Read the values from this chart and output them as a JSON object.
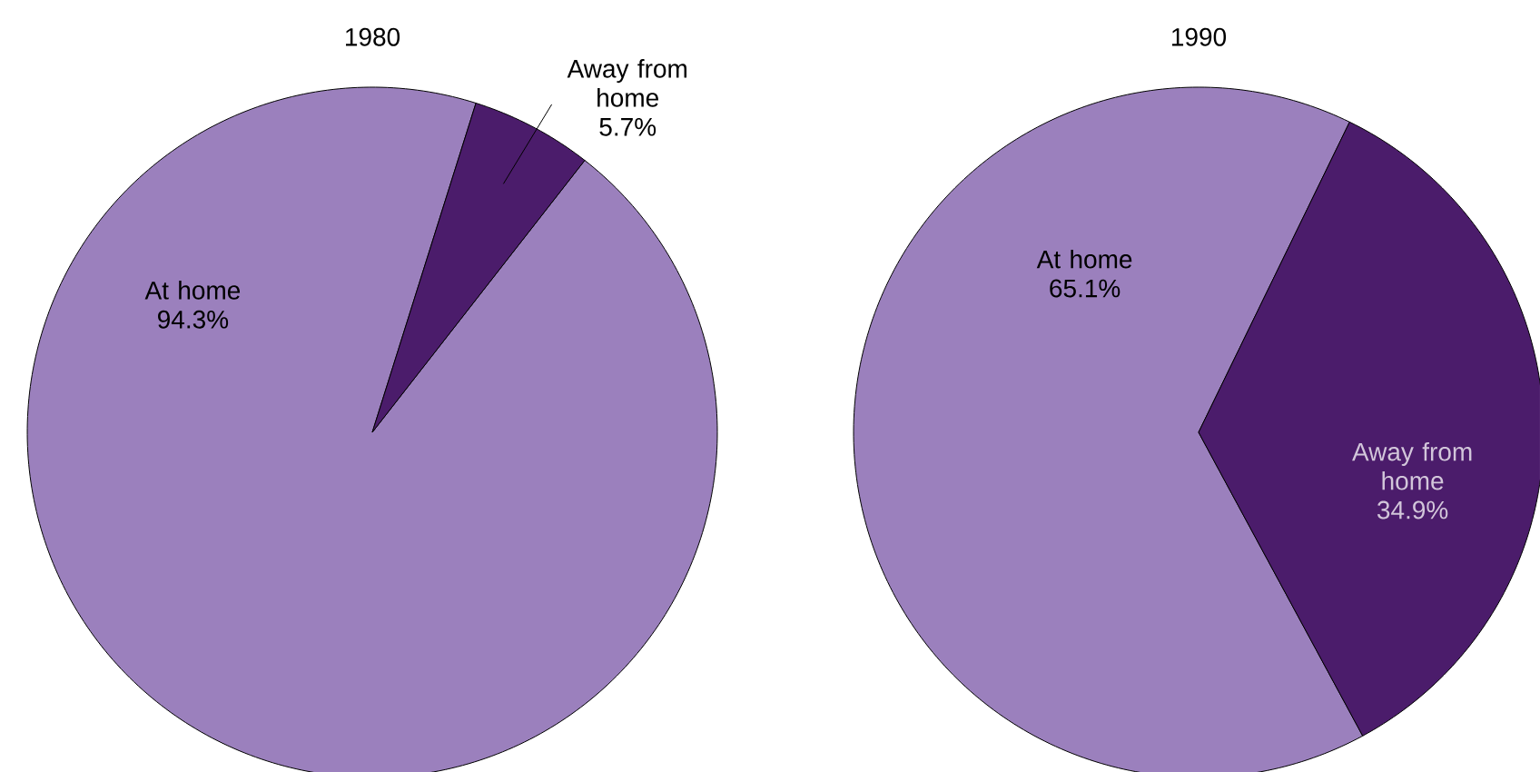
{
  "chart_data": [
    {
      "type": "pie",
      "title": "1980",
      "categories": [
        "At home",
        "Away from home"
      ],
      "values": [
        94.3,
        5.7
      ],
      "colors": [
        "#9b80bd",
        "#4b1c6b"
      ],
      "value_labels": [
        "94.3%",
        "5.7%"
      ]
    },
    {
      "type": "pie",
      "title": "1990",
      "categories": [
        "At home",
        "Away from home"
      ],
      "values": [
        65.1,
        34.9
      ],
      "colors": [
        "#9b80bd",
        "#4b1c6b"
      ],
      "value_labels": [
        "65.1%",
        "34.9%"
      ]
    }
  ]
}
